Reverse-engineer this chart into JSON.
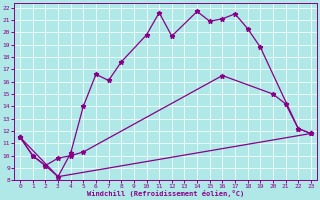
{
  "xlabel": "Windchill (Refroidissement éolien,°C)",
  "bg_color": "#b0e8e8",
  "line_color": "#880088",
  "xlim": [
    -0.5,
    23.5
  ],
  "ylim": [
    8,
    22.4
  ],
  "xticks": [
    0,
    1,
    2,
    3,
    4,
    5,
    6,
    7,
    8,
    9,
    10,
    11,
    12,
    13,
    14,
    15,
    16,
    17,
    18,
    19,
    20,
    21,
    22,
    23
  ],
  "yticks": [
    8,
    9,
    10,
    11,
    12,
    13,
    14,
    15,
    16,
    17,
    18,
    19,
    20,
    21,
    22
  ],
  "line1_x": [
    0,
    1,
    2,
    3,
    4,
    5,
    6,
    7,
    8,
    10,
    11,
    12,
    14,
    15,
    16,
    17,
    18,
    19,
    22,
    23
  ],
  "line1_y": [
    11.5,
    10.0,
    9.2,
    8.3,
    10.2,
    14.0,
    16.6,
    16.1,
    17.6,
    19.8,
    21.6,
    19.7,
    21.7,
    20.9,
    21.1,
    21.5,
    20.3,
    18.8,
    12.2,
    11.8
  ],
  "line2_x": [
    0,
    1,
    2,
    3,
    4,
    5,
    16,
    20,
    21,
    22,
    23
  ],
  "line2_y": [
    11.5,
    10.0,
    9.2,
    9.8,
    10.0,
    10.3,
    16.5,
    15.0,
    14.2,
    12.2,
    11.8
  ],
  "line3_x": [
    0,
    3,
    23
  ],
  "line3_y": [
    11.5,
    8.3,
    11.8
  ],
  "grid_color": "#ffffff"
}
